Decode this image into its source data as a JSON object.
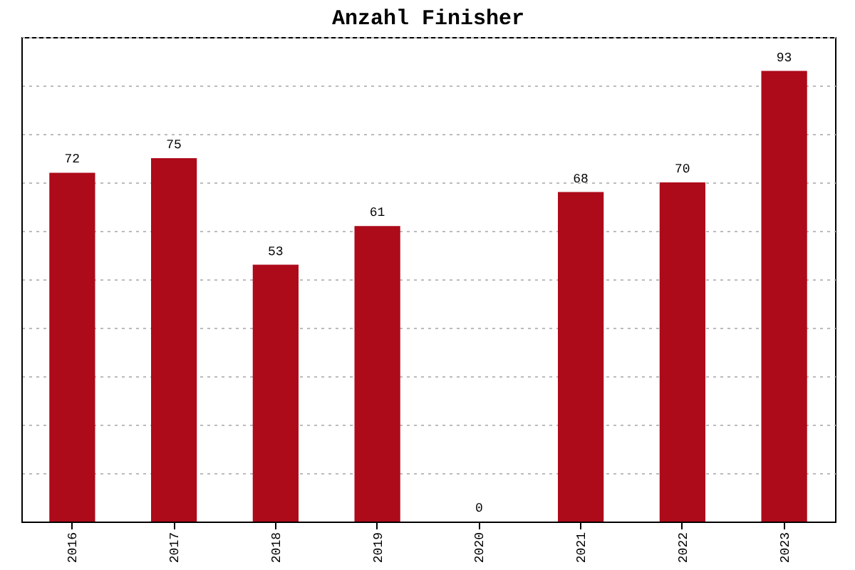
{
  "chart_data": {
    "type": "bar",
    "title": "Anzahl Finisher",
    "categories": [
      "2016",
      "2017",
      "2018",
      "2019",
      "2020",
      "2021",
      "2022",
      "2023"
    ],
    "values": [
      72,
      75,
      53,
      61,
      0,
      68,
      70,
      93
    ],
    "color": "#ad0a1a",
    "data_labels": true,
    "grid": "y"
  }
}
